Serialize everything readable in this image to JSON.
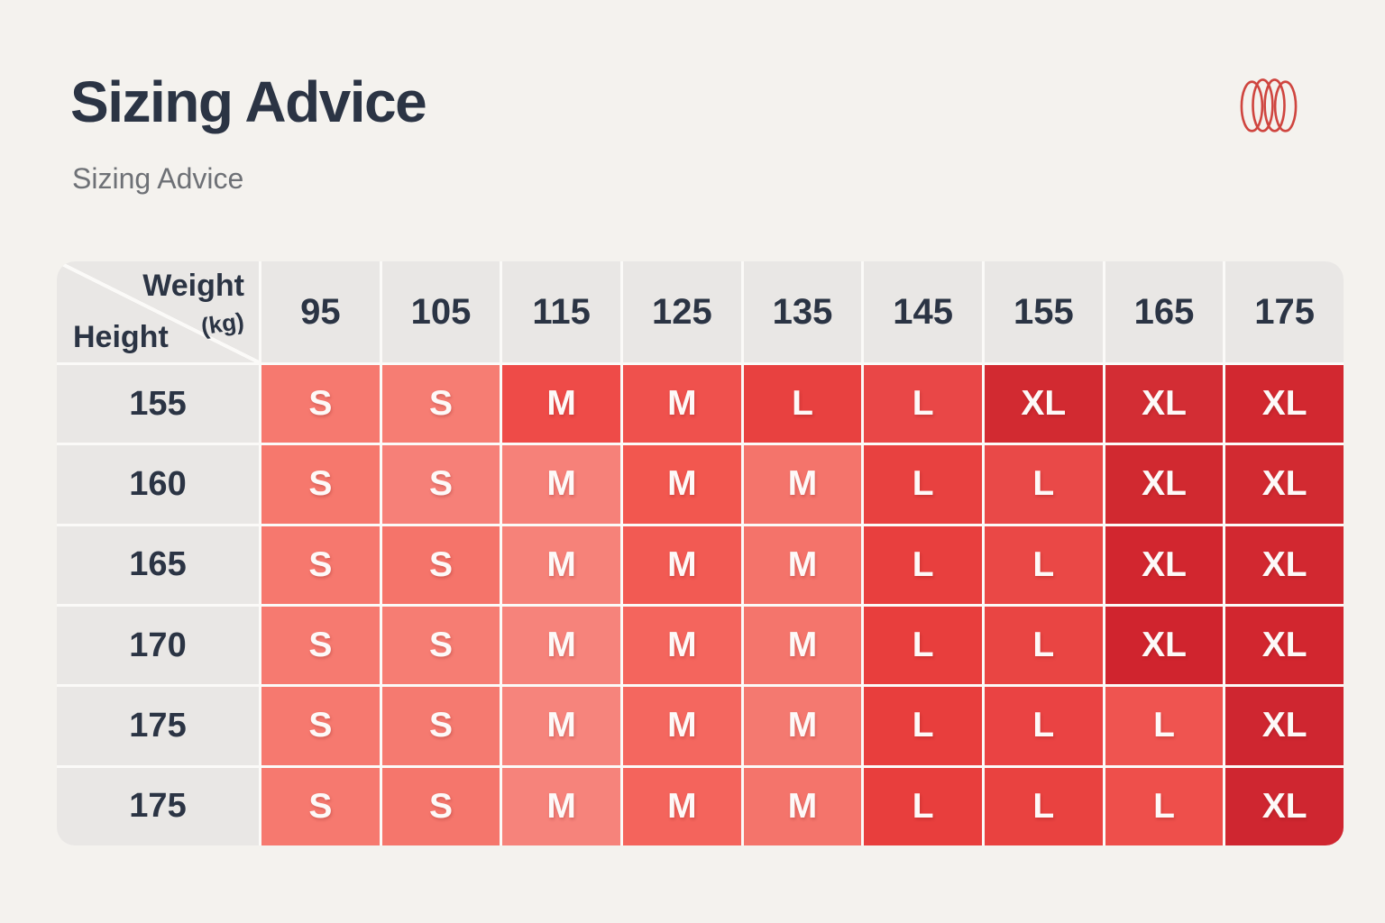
{
  "page": {
    "title": "Sizing Advice",
    "subtitle": "Sizing Advice"
  },
  "logo": {
    "name": "overlapping-rings-logo",
    "color": "#cf453f"
  },
  "table": {
    "corner": {
      "top_label": "Weight",
      "unit_label": "(kg)",
      "side_label": "Height"
    },
    "weight_headers": [
      "95",
      "105",
      "115",
      "125",
      "135",
      "145",
      "155",
      "165",
      "175"
    ],
    "rows": [
      {
        "height": "155",
        "cells": [
          {
            "size": "S",
            "color": "#f6796f"
          },
          {
            "size": "S",
            "color": "#f67d73"
          },
          {
            "size": "M",
            "color": "#ee4b48"
          },
          {
            "size": "M",
            "color": "#ef514d"
          },
          {
            "size": "L",
            "color": "#e84140"
          },
          {
            "size": "L",
            "color": "#e94747"
          },
          {
            "size": "XL",
            "color": "#d22a31"
          },
          {
            "size": "XL",
            "color": "#d32d34"
          },
          {
            "size": "XL",
            "color": "#d22830"
          }
        ]
      },
      {
        "height": "160",
        "cells": [
          {
            "size": "S",
            "color": "#f6786d"
          },
          {
            "size": "S",
            "color": "#f68078"
          },
          {
            "size": "M",
            "color": "#f68179"
          },
          {
            "size": "M",
            "color": "#f2574f"
          },
          {
            "size": "M",
            "color": "#f4746b"
          },
          {
            "size": "L",
            "color": "#e84140"
          },
          {
            "size": "L",
            "color": "#e94948"
          },
          {
            "size": "XL",
            "color": "#d12930"
          },
          {
            "size": "XL",
            "color": "#d22a31"
          }
        ]
      },
      {
        "height": "165",
        "cells": [
          {
            "size": "S",
            "color": "#f6786e"
          },
          {
            "size": "S",
            "color": "#f5746a"
          },
          {
            "size": "M",
            "color": "#f68279"
          },
          {
            "size": "M",
            "color": "#f25a53"
          },
          {
            "size": "M",
            "color": "#f4736a"
          },
          {
            "size": "L",
            "color": "#e83f3e"
          },
          {
            "size": "L",
            "color": "#ea4846"
          },
          {
            "size": "XL",
            "color": "#d2262f"
          },
          {
            "size": "XL",
            "color": "#d22830"
          }
        ]
      },
      {
        "height": "170",
        "cells": [
          {
            "size": "S",
            "color": "#f67a70"
          },
          {
            "size": "S",
            "color": "#f67d73"
          },
          {
            "size": "M",
            "color": "#f6837b"
          },
          {
            "size": "M",
            "color": "#f4655d"
          },
          {
            "size": "M",
            "color": "#f4756c"
          },
          {
            "size": "L",
            "color": "#e83e3d"
          },
          {
            "size": "L",
            "color": "#e94543"
          },
          {
            "size": "XL",
            "color": "#d0242e"
          },
          {
            "size": "XL",
            "color": "#d2262f"
          }
        ]
      },
      {
        "height": "175",
        "cells": [
          {
            "size": "S",
            "color": "#f6796f"
          },
          {
            "size": "S",
            "color": "#f57a70"
          },
          {
            "size": "M",
            "color": "#f6847c"
          },
          {
            "size": "M",
            "color": "#f4675f"
          },
          {
            "size": "M",
            "color": "#f47970"
          },
          {
            "size": "L",
            "color": "#e83e3d"
          },
          {
            "size": "L",
            "color": "#ea4343"
          },
          {
            "size": "L",
            "color": "#ef5450"
          },
          {
            "size": "XL",
            "color": "#cf2630"
          }
        ]
      },
      {
        "height": "175",
        "cells": [
          {
            "size": "S",
            "color": "#f6796f"
          },
          {
            "size": "S",
            "color": "#f5766c"
          },
          {
            "size": "M",
            "color": "#f6837b"
          },
          {
            "size": "M",
            "color": "#f4645c"
          },
          {
            "size": "M",
            "color": "#f4746b"
          },
          {
            "size": "L",
            "color": "#e83e3d"
          },
          {
            "size": "L",
            "color": "#e94240"
          },
          {
            "size": "L",
            "color": "#ee4f4b"
          },
          {
            "size": "XL",
            "color": "#cf2630"
          }
        ]
      }
    ]
  },
  "chart_data": {
    "type": "heatmap",
    "title": "Sizing Advice",
    "xlabel": "Weight (kg)",
    "ylabel": "Height",
    "x": [
      95,
      105,
      115,
      125,
      135,
      145,
      155,
      165,
      175
    ],
    "y": [
      155,
      160,
      165,
      170,
      175,
      175
    ],
    "values": [
      [
        "S",
        "S",
        "M",
        "M",
        "L",
        "L",
        "XL",
        "XL",
        "XL"
      ],
      [
        "S",
        "S",
        "M",
        "M",
        "M",
        "L",
        "L",
        "XL",
        "XL"
      ],
      [
        "S",
        "S",
        "M",
        "M",
        "M",
        "L",
        "L",
        "XL",
        "XL"
      ],
      [
        "S",
        "S",
        "M",
        "M",
        "M",
        "L",
        "L",
        "XL",
        "XL"
      ],
      [
        "S",
        "S",
        "M",
        "M",
        "M",
        "L",
        "L",
        "L",
        "XL"
      ],
      [
        "S",
        "S",
        "M",
        "M",
        "M",
        "L",
        "L",
        "L",
        "XL"
      ]
    ],
    "size_color_scale": {
      "S": "#f6796f",
      "M": "#f25a53",
      "L": "#e83f3e",
      "XL": "#d2292f"
    },
    "legend_position": "none",
    "grid": false
  }
}
